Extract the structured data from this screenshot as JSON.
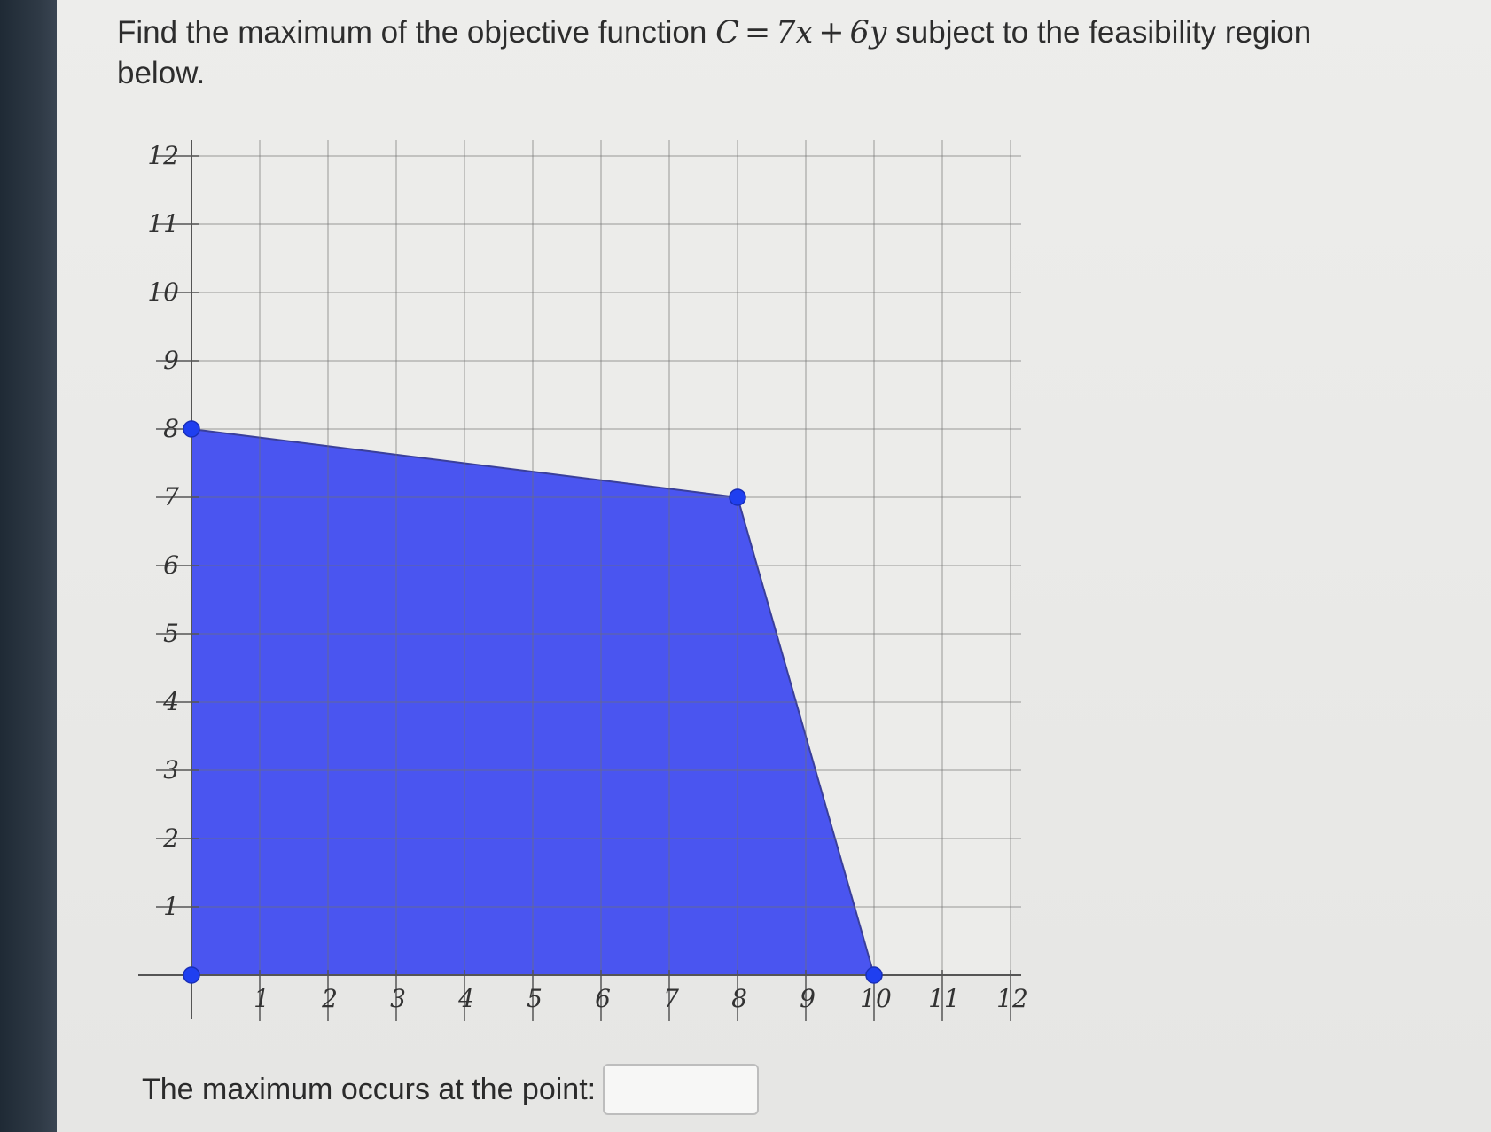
{
  "question": {
    "prefix": "Find the maximum of the objective function ",
    "math_lhs": "C",
    "math_eq": "=",
    "math_term1": "7x",
    "math_plus": "+",
    "math_term2": "6y",
    "suffix": " subject to the feasibility region below."
  },
  "chart_data": {
    "type": "area",
    "xlim": [
      0,
      12
    ],
    "ylim": [
      0,
      12
    ],
    "x_ticks": [
      "1",
      "2",
      "3",
      "4",
      "5",
      "6",
      "7",
      "8",
      "9",
      "10",
      "11",
      "12"
    ],
    "y_ticks": [
      "1",
      "2",
      "3",
      "4",
      "5",
      "6",
      "7",
      "8",
      "9",
      "10",
      "11",
      "12"
    ],
    "grid": true,
    "region_color": "#4a55f0",
    "vertices": [
      {
        "x": 0,
        "y": 0
      },
      {
        "x": 0,
        "y": 8
      },
      {
        "x": 8,
        "y": 7
      },
      {
        "x": 10,
        "y": 0
      }
    ]
  },
  "answer": {
    "label": "The maximum occurs at the point:",
    "value": ""
  }
}
